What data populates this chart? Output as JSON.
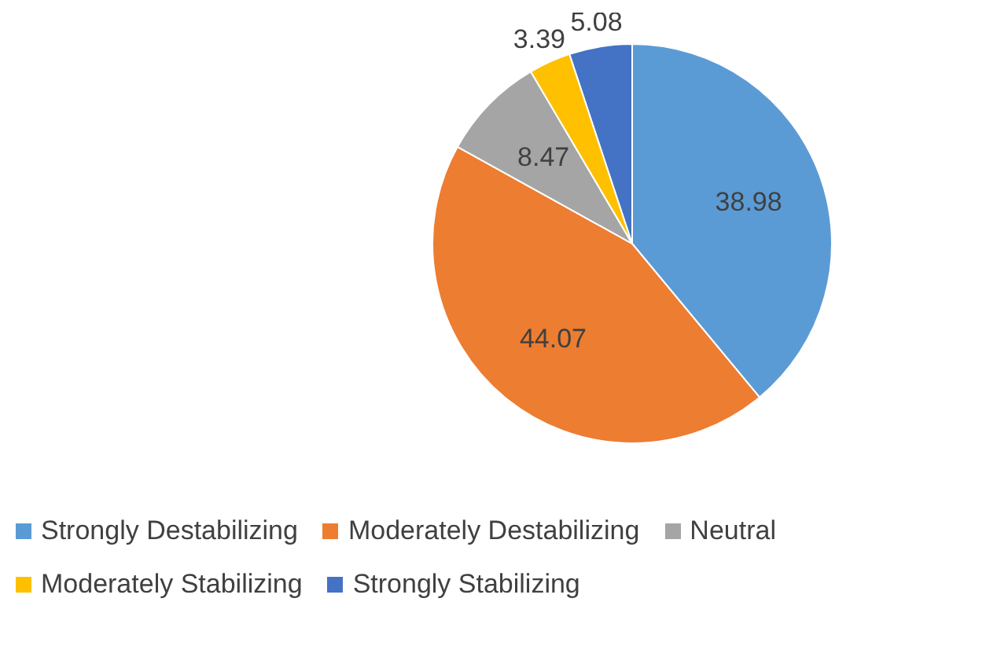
{
  "chart_data": {
    "type": "pie",
    "categories": [
      "Strongly Destabilizing",
      "Moderately Destabilizing",
      "Neutral",
      "Moderately Stabilizing",
      "Strongly Stabilizing"
    ],
    "values": [
      38.98,
      44.07,
      8.47,
      3.39,
      5.08
    ],
    "colors": [
      "#5b9bd5",
      "#ed7d31",
      "#a5a5a5",
      "#ffc000",
      "#4472c4"
    ],
    "data_labels": true,
    "legend": "bottom"
  }
}
